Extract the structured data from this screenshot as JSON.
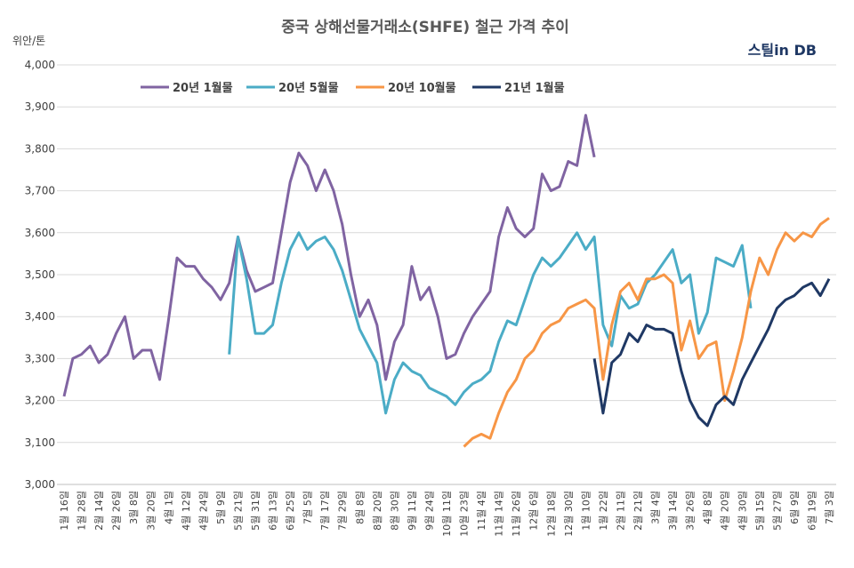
{
  "chart_data": {
    "type": "line",
    "title": "중국 상해선물거래소(SHFE) 철근 가격 추이",
    "y_label": "위안/톤",
    "logo": "스틸in DB",
    "categories": [
      "1월 16일",
      null,
      "1월 28일",
      null,
      "2월 14일",
      null,
      "2월 26일",
      null,
      "3월 8일",
      null,
      "3월 20일",
      null,
      "4월 1일",
      null,
      "4월 12일",
      null,
      "4월 24일",
      null,
      "5월 9일",
      null,
      "5월 21일",
      null,
      "5월 31일",
      null,
      "6월 13일",
      null,
      "6월 25일",
      null,
      "7월 5일",
      null,
      "7월 17일",
      null,
      "7월 29일",
      null,
      "8월 8일",
      null,
      "8월 20일",
      null,
      "8월 30일",
      null,
      "9월 11일",
      null,
      "9월 24일",
      null,
      "10월 11일",
      null,
      "10월 23일",
      null,
      "11월 4일",
      null,
      "11월 14일",
      null,
      "11월 26일",
      null,
      "12월 6일",
      null,
      "12월 18일",
      null,
      "12월 30일",
      null,
      "1월 10일",
      null,
      "1월 22일",
      null,
      "2월 11일",
      null,
      "2월 21일",
      null,
      "3월 4일",
      null,
      "3월 14일",
      null,
      "3월 26일",
      null,
      "4월 8일",
      null,
      "4월 20일",
      null,
      "4월 30일",
      null,
      "5월 15일",
      null,
      "5월 27일",
      null,
      "6월 9일",
      null,
      "6월 19일",
      null,
      "7월 3일"
    ],
    "series": [
      {
        "name": "20년 1월물",
        "color": "#8064a2",
        "values": [
          3210,
          3300,
          3310,
          3330,
          3290,
          3310,
          3360,
          3400,
          3300,
          3320,
          3320,
          3250,
          3390,
          3540,
          3520,
          3520,
          3490,
          3470,
          3440,
          3480,
          3590,
          3510,
          3460,
          3470,
          3480,
          3600,
          3720,
          3790,
          3760,
          3700,
          3750,
          3700,
          3620,
          3500,
          3400,
          3440,
          3380,
          3250,
          3340,
          3380,
          3520,
          3440,
          3470,
          3400,
          3300,
          3310,
          3360,
          3400,
          3430,
          3460,
          3590,
          3660,
          3610,
          3590,
          3610,
          3740,
          3700,
          3710,
          3770,
          3760,
          3880,
          3780,
          null,
          null,
          null,
          null,
          null,
          null,
          null,
          null,
          null,
          null,
          null,
          null,
          null,
          null,
          null,
          null,
          null,
          null,
          null,
          null,
          null,
          null,
          null,
          null,
          null,
          null,
          null
        ]
      },
      {
        "name": "20년 5월물",
        "color": "#4bacc6",
        "values": [
          null,
          null,
          null,
          null,
          null,
          null,
          null,
          null,
          null,
          null,
          null,
          null,
          null,
          null,
          null,
          null,
          null,
          null,
          null,
          3310,
          3590,
          3490,
          3360,
          3360,
          3380,
          3480,
          3560,
          3600,
          3560,
          3580,
          3590,
          3560,
          3510,
          3440,
          3370,
          3330,
          3290,
          3170,
          3250,
          3290,
          3270,
          3260,
          3230,
          3220,
          3210,
          3190,
          3220,
          3240,
          3250,
          3270,
          3340,
          3390,
          3380,
          3440,
          3500,
          3540,
          3520,
          3540,
          3570,
          3600,
          3560,
          3590,
          3380,
          3330,
          3450,
          3420,
          3430,
          3480,
          3500,
          3530,
          3560,
          3480,
          3500,
          3360,
          3410,
          3540,
          3530,
          3520,
          3570,
          3420,
          null,
          null,
          null,
          null,
          null,
          null,
          null,
          null,
          null
        ]
      },
      {
        "name": "20년 10월물",
        "color": "#f79646",
        "values": [
          null,
          null,
          null,
          null,
          null,
          null,
          null,
          null,
          null,
          null,
          null,
          null,
          null,
          null,
          null,
          null,
          null,
          null,
          null,
          null,
          null,
          null,
          null,
          null,
          null,
          null,
          null,
          null,
          null,
          null,
          null,
          null,
          null,
          null,
          null,
          null,
          null,
          null,
          null,
          null,
          null,
          null,
          null,
          null,
          null,
          null,
          3090,
          3110,
          3120,
          3110,
          3170,
          3220,
          3250,
          3300,
          3320,
          3360,
          3380,
          3390,
          3420,
          3430,
          3440,
          3420,
          3250,
          3380,
          3460,
          3480,
          3440,
          3490,
          3490,
          3500,
          3480,
          3320,
          3390,
          3300,
          3330,
          3340,
          3200,
          3270,
          3350,
          3460,
          3540,
          3500,
          3560,
          3600,
          3580,
          3600,
          3590,
          3620,
          3635
        ]
      },
      {
        "name": "21년 1월물",
        "color": "#1f3864",
        "values": [
          null,
          null,
          null,
          null,
          null,
          null,
          null,
          null,
          null,
          null,
          null,
          null,
          null,
          null,
          null,
          null,
          null,
          null,
          null,
          null,
          null,
          null,
          null,
          null,
          null,
          null,
          null,
          null,
          null,
          null,
          null,
          null,
          null,
          null,
          null,
          null,
          null,
          null,
          null,
          null,
          null,
          null,
          null,
          null,
          null,
          null,
          null,
          null,
          null,
          null,
          null,
          null,
          null,
          null,
          null,
          null,
          null,
          null,
          null,
          null,
          null,
          3300,
          3170,
          3290,
          3310,
          3360,
          3340,
          3380,
          3370,
          3370,
          3360,
          3270,
          3200,
          3160,
          3140,
          3190,
          3210,
          3190,
          3250,
          3290,
          3330,
          3370,
          3420,
          3440,
          3450,
          3470,
          3480,
          3450,
          3490
        ]
      }
    ],
    "ylim": [
      3000,
      4000
    ],
    "yticks": [
      {
        "value": 3000,
        "label": "3,000"
      },
      {
        "value": 3100,
        "label": "3,100"
      },
      {
        "value": 3200,
        "label": "3,200"
      },
      {
        "value": 3300,
        "label": "3,300"
      },
      {
        "value": 3400,
        "label": "3,400"
      },
      {
        "value": 3500,
        "label": "3,500"
      },
      {
        "value": 3600,
        "label": "3,600"
      },
      {
        "value": 3700,
        "label": "3,700"
      },
      {
        "value": 3800,
        "label": "3,800"
      },
      {
        "value": 3900,
        "label": "3,900"
      },
      {
        "value": 4000,
        "label": "4,000"
      }
    ],
    "grid": true
  }
}
